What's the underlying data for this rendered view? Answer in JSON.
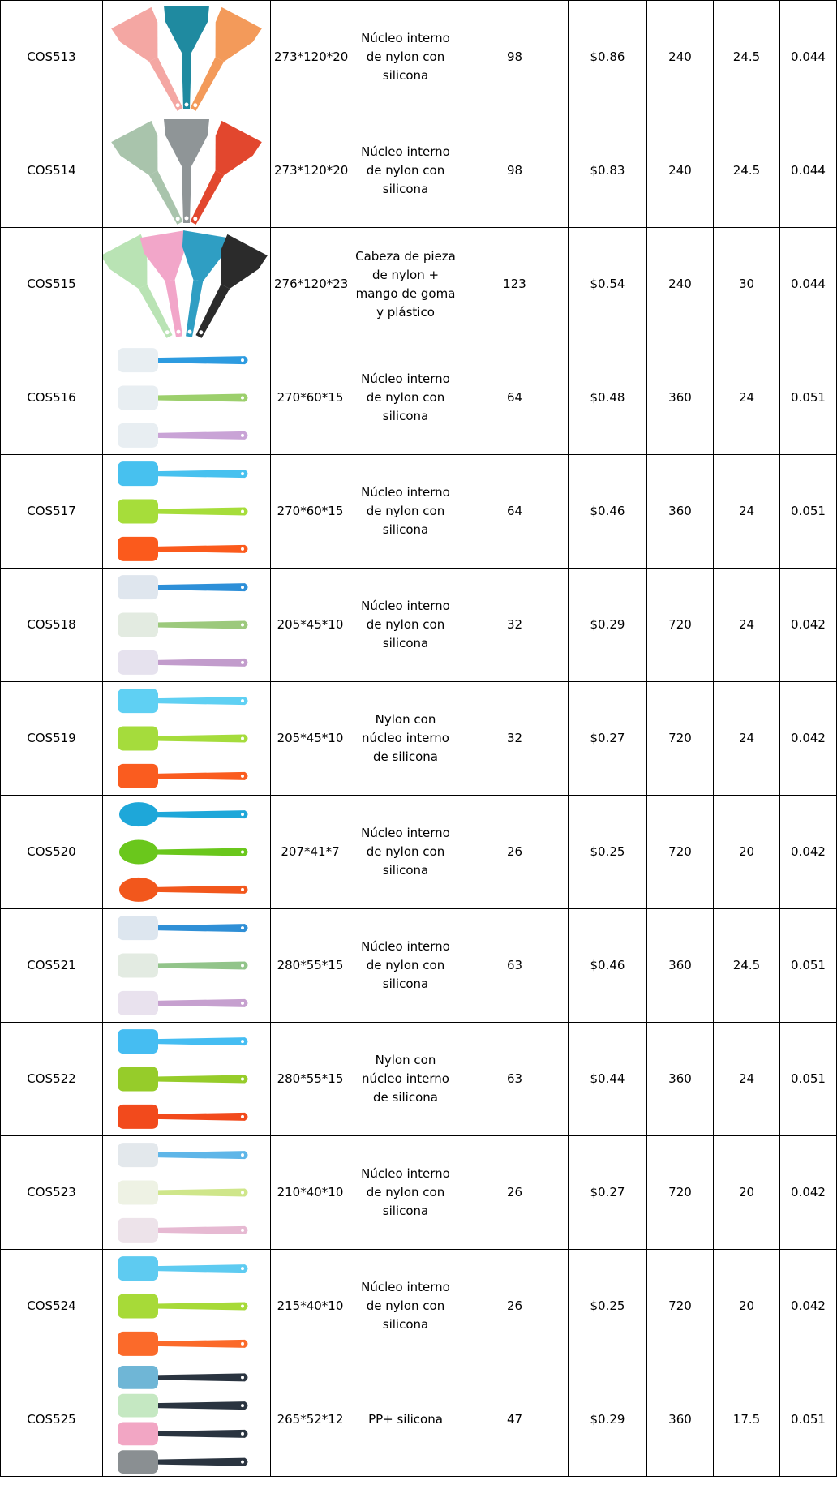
{
  "table": {
    "rows": [
      [
        "COS513",
        "273*120*20",
        "Núcleo interno de nylon con silicona",
        98,
        "$0.86",
        240,
        24.5,
        0.044
      ],
      [
        "COS514",
        "273*120*20",
        "Núcleo interno de nylon con silicona",
        98,
        "$0.83",
        240,
        24.5,
        0.044
      ],
      [
        "COS515",
        "276*120*23",
        "Cabeza de pieza de nylon + mango de goma y plástico",
        123,
        "$0.54",
        240,
        30,
        0.044
      ],
      [
        "COS516",
        "270*60*15",
        "Núcleo interno de nylon con silicona",
        64,
        "$0.48",
        360,
        24,
        0.051
      ],
      [
        "COS517",
        "270*60*15",
        "Núcleo interno de nylon con silicona",
        64,
        "$0.46",
        360,
        24,
        0.051
      ],
      [
        "COS518",
        "205*45*10",
        "Núcleo interno de nylon con silicona",
        32,
        "$0.29",
        720,
        24,
        0.042
      ],
      [
        "COS519",
        "205*45*10",
        "Nylon con núcleo interno de silicona",
        32,
        "$0.27",
        720,
        24,
        0.042
      ],
      [
        "COS520",
        "207*41*7",
        "Núcleo interno de nylon con silicona",
        26,
        "$0.25",
        720,
        20,
        0.042
      ],
      [
        "COS521",
        "280*55*15",
        "Núcleo interno de nylon con silicona",
        63,
        "$0.46",
        360,
        24.5,
        0.051
      ],
      [
        "COS522",
        "280*55*15",
        "Nylon con núcleo interno de silicona",
        63,
        "$0.44",
        360,
        24,
        0.051
      ],
      [
        "COS523",
        "210*40*10",
        "Núcleo interno de nylon con silicona",
        26,
        "$0.27",
        720,
        20,
        0.042
      ],
      [
        "COS524",
        "215*40*10",
        "Núcleo interno de nylon con silicona",
        26,
        "$0.25",
        720,
        20,
        0.042
      ],
      [
        "COS525",
        "265*52*12",
        "PP+ silicona",
        47,
        "$0.29",
        360,
        17.5,
        0.051
      ]
    ]
  }
}
